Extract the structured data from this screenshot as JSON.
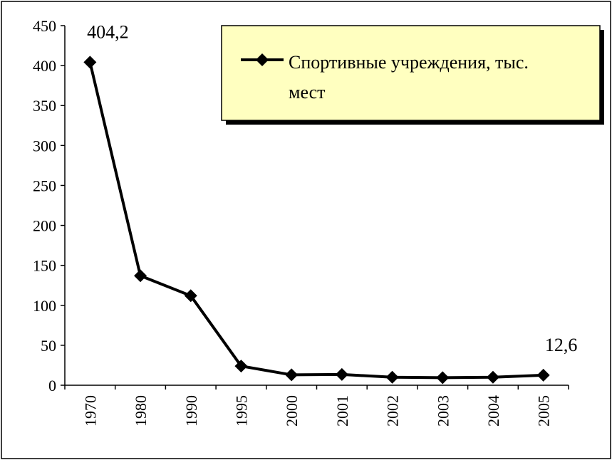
{
  "chart_data": {
    "type": "line",
    "categories": [
      "1970",
      "1980",
      "1990",
      "1995",
      "2000",
      "2001",
      "2002",
      "2003",
      "2004",
      "2005"
    ],
    "series": [
      {
        "name": "Спортивные учреждения, тыс. мест",
        "values": [
          404.2,
          137,
          112,
          24,
          13,
          13.5,
          10,
          9.5,
          10,
          12.6
        ],
        "color": "#000000"
      }
    ],
    "data_labels": [
      {
        "index": 0,
        "text": "404,2"
      },
      {
        "index": 9,
        "text": "12,6"
      }
    ],
    "yticks": [
      "0",
      "50",
      "100",
      "150",
      "200",
      "250",
      "300",
      "350",
      "400",
      "450"
    ],
    "ylim": [
      0,
      450
    ],
    "grid": false,
    "legend": {
      "placement": "top-right",
      "background": "#ffffc0",
      "line1": "Спортивные учреждения, тыс.",
      "line2": "мест"
    }
  }
}
